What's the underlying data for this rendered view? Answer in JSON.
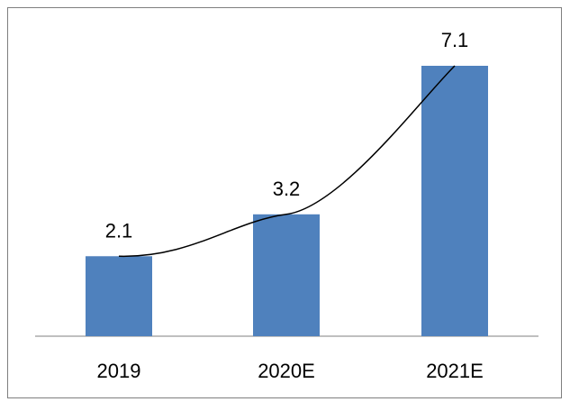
{
  "chart_data": {
    "type": "bar",
    "categories": [
      "2019",
      "2020E",
      "2021E"
    ],
    "values": [
      2.1,
      3.2,
      7.1
    ],
    "data_labels": [
      "2.1",
      "3.2",
      "7.1"
    ],
    "title": "",
    "xlabel": "",
    "ylabel": "",
    "ylim": [
      0,
      7.1
    ],
    "grid": false,
    "legend": "none",
    "trendline": true,
    "colors": {
      "bar": "#4f81bd",
      "trendline": "#000000",
      "axis": "#7f7f7f",
      "border": "#7f7f7f"
    }
  }
}
